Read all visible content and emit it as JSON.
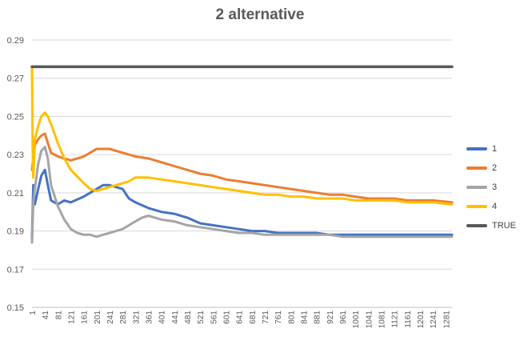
{
  "chart_data": {
    "type": "line",
    "title": "2 alternative",
    "xlabel": "",
    "ylabel": "",
    "x_range": [
      1,
      1300
    ],
    "ylim": [
      0.15,
      0.29
    ],
    "y_ticks": [
      "0.15",
      "0.17",
      "0.19",
      "0.21",
      "0.23",
      "0.25",
      "0.27",
      "0.29"
    ],
    "x_ticks": [
      1,
      41,
      81,
      121,
      161,
      201,
      241,
      281,
      321,
      361,
      401,
      441,
      481,
      521,
      561,
      601,
      641,
      681,
      721,
      761,
      801,
      841,
      881,
      921,
      961,
      1001,
      1041,
      1081,
      1121,
      1161,
      1201,
      1241,
      1281
    ],
    "grid": true,
    "legend_position": "right",
    "series": [
      {
        "name": "1",
        "color": "#4472C4",
        "x": [
          1,
          5,
          10,
          20,
          30,
          41,
          50,
          60,
          81,
          101,
          121,
          161,
          201,
          221,
          241,
          261,
          281,
          301,
          321,
          361,
          401,
          441,
          481,
          521,
          561,
          601,
          641,
          681,
          721,
          761,
          801,
          841,
          881,
          921,
          961,
          1001,
          1041,
          1081,
          1121,
          1161,
          1201,
          1241,
          1300
        ],
        "values": [
          0.186,
          0.214,
          0.204,
          0.212,
          0.219,
          0.222,
          0.214,
          0.206,
          0.204,
          0.206,
          0.205,
          0.208,
          0.212,
          0.214,
          0.214,
          0.213,
          0.212,
          0.207,
          0.205,
          0.202,
          0.2,
          0.199,
          0.197,
          0.194,
          0.193,
          0.192,
          0.191,
          0.19,
          0.19,
          0.189,
          0.189,
          0.189,
          0.189,
          0.188,
          0.188,
          0.188,
          0.188,
          0.188,
          0.188,
          0.188,
          0.188,
          0.188,
          0.188
        ]
      },
      {
        "name": "2",
        "color": "#ED7D31",
        "x": [
          1,
          5,
          10,
          20,
          30,
          41,
          50,
          60,
          81,
          101,
          121,
          161,
          201,
          221,
          241,
          261,
          281,
          301,
          321,
          361,
          401,
          441,
          481,
          521,
          561,
          601,
          641,
          681,
          721,
          761,
          801,
          841,
          881,
          921,
          961,
          1001,
          1041,
          1081,
          1121,
          1161,
          1201,
          1241,
          1300
        ],
        "values": [
          0.222,
          0.228,
          0.235,
          0.238,
          0.24,
          0.241,
          0.236,
          0.231,
          0.229,
          0.228,
          0.227,
          0.229,
          0.233,
          0.233,
          0.233,
          0.232,
          0.231,
          0.23,
          0.229,
          0.228,
          0.226,
          0.224,
          0.222,
          0.22,
          0.219,
          0.217,
          0.216,
          0.215,
          0.214,
          0.213,
          0.212,
          0.211,
          0.21,
          0.209,
          0.209,
          0.208,
          0.207,
          0.207,
          0.207,
          0.206,
          0.206,
          0.206,
          0.205
        ]
      },
      {
        "name": "3",
        "color": "#A5A5A5",
        "x": [
          1,
          5,
          10,
          20,
          30,
          41,
          50,
          60,
          81,
          101,
          121,
          141,
          161,
          181,
          201,
          221,
          241,
          261,
          281,
          301,
          321,
          341,
          361,
          381,
          401,
          441,
          481,
          521,
          561,
          601,
          641,
          681,
          721,
          761,
          801,
          841,
          881,
          921,
          961,
          1001,
          1041,
          1081,
          1121,
          1161,
          1201,
          1241,
          1300
        ],
        "values": [
          0.184,
          0.205,
          0.212,
          0.225,
          0.232,
          0.234,
          0.228,
          0.214,
          0.203,
          0.196,
          0.191,
          0.189,
          0.188,
          0.188,
          0.187,
          0.188,
          0.189,
          0.19,
          0.191,
          0.193,
          0.195,
          0.197,
          0.198,
          0.197,
          0.196,
          0.195,
          0.193,
          0.192,
          0.191,
          0.19,
          0.189,
          0.189,
          0.188,
          0.188,
          0.188,
          0.188,
          0.188,
          0.188,
          0.187,
          0.187,
          0.187,
          0.187,
          0.187,
          0.187,
          0.187,
          0.187,
          0.187
        ]
      },
      {
        "name": "4",
        "color": "#FFC000",
        "x": [
          1,
          3,
          5,
          10,
          20,
          30,
          41,
          50,
          60,
          81,
          101,
          121,
          161,
          181,
          201,
          221,
          241,
          261,
          281,
          301,
          321,
          361,
          401,
          441,
          481,
          521,
          561,
          601,
          641,
          681,
          721,
          761,
          801,
          841,
          881,
          921,
          961,
          1001,
          1041,
          1081,
          1121,
          1161,
          1201,
          1241,
          1300
        ],
        "values": [
          0.276,
          0.235,
          0.218,
          0.238,
          0.245,
          0.25,
          0.252,
          0.25,
          0.246,
          0.236,
          0.228,
          0.222,
          0.215,
          0.212,
          0.211,
          0.212,
          0.213,
          0.214,
          0.215,
          0.216,
          0.218,
          0.218,
          0.217,
          0.216,
          0.215,
          0.214,
          0.213,
          0.212,
          0.211,
          0.21,
          0.209,
          0.209,
          0.208,
          0.208,
          0.207,
          0.207,
          0.207,
          0.206,
          0.206,
          0.206,
          0.206,
          0.205,
          0.205,
          0.205,
          0.204
        ]
      },
      {
        "name": "TRUE",
        "color": "#595959",
        "x": [
          1,
          1300
        ],
        "values": [
          0.276,
          0.276
        ]
      }
    ]
  }
}
